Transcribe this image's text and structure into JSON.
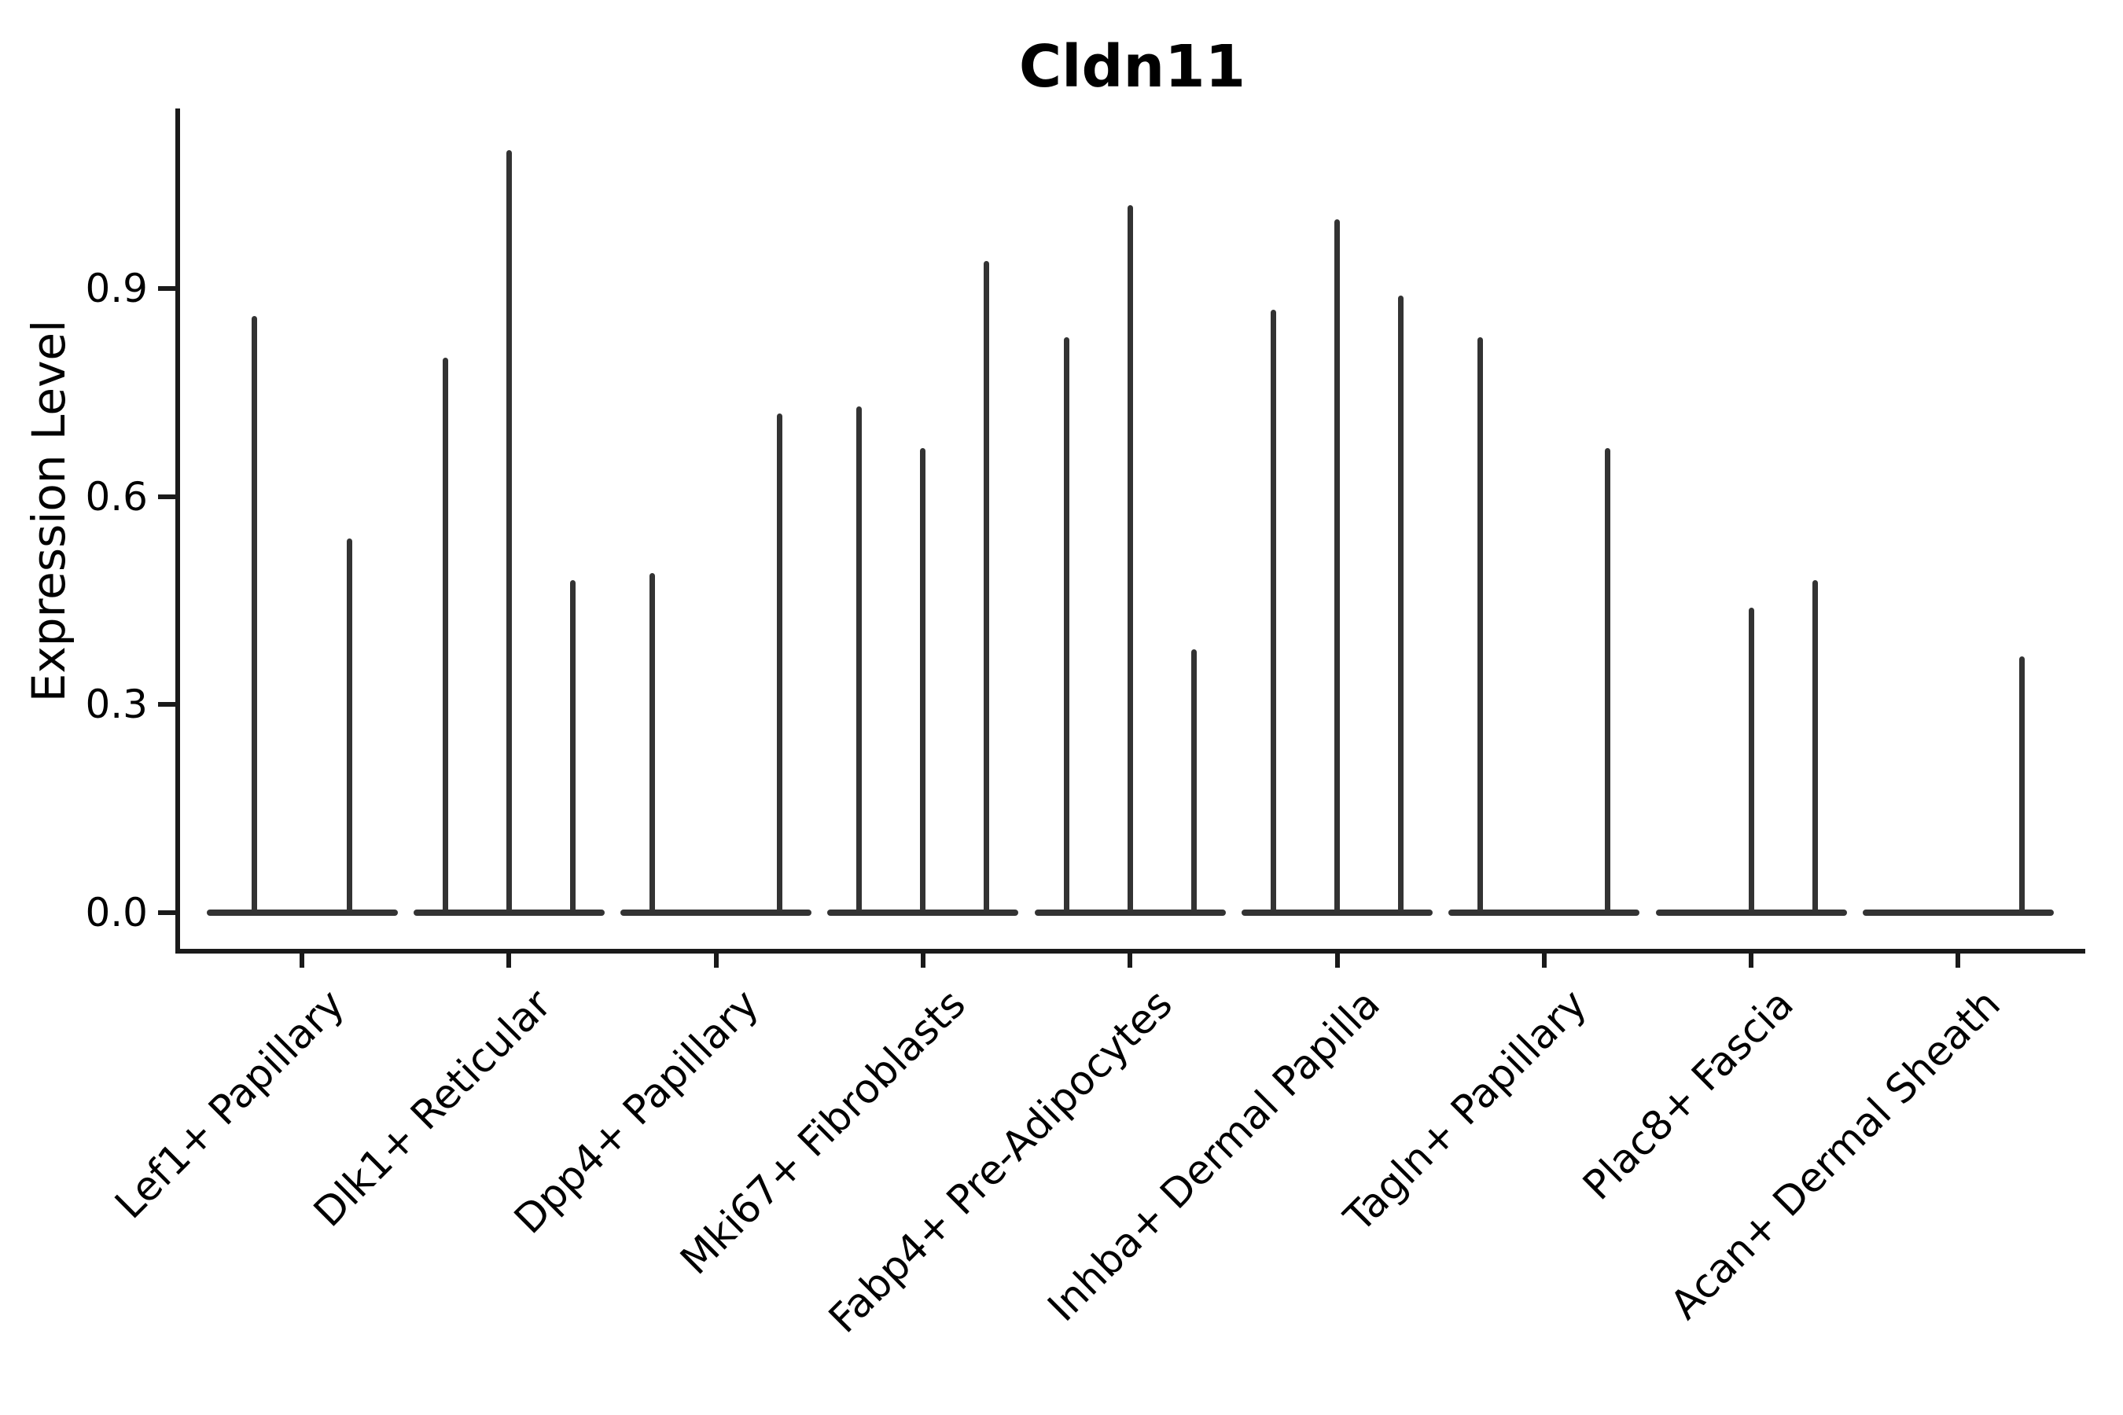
{
  "figure": {
    "title": "Cldn11",
    "ylabel": "Expression Level",
    "background_color": "#ffffff",
    "ink_color": "#1a1a1a",
    "violin_color": "#333333"
  },
  "chart_data": {
    "type": "violin",
    "title": "Cldn11",
    "xlabel": "",
    "ylabel": "Expression Level",
    "ytick_labels": [
      "0.0",
      "0.3",
      "0.6",
      "0.9"
    ],
    "ytick_values": [
      0.0,
      0.3,
      0.6,
      0.9
    ],
    "ylim": [
      -0.05,
      1.16
    ],
    "grid": false,
    "legend_position": "none",
    "categories": [
      "Lef1+ Papillary",
      "Dlk1+ Reticular",
      "Dpp4+ Papillary",
      "Mki67+ Fibroblasts",
      "Fabp4+ Pre-Adipocytes",
      "Inhba+ Dermal Papilla",
      "Tagln+ Papillary",
      "Plac8+ Fascia",
      "Acan+ Dermal Sheath"
    ],
    "groups": [
      {
        "category": "Lef1+ Papillary",
        "violin_max_values": [
          0.86,
          0.54
        ]
      },
      {
        "category": "Dlk1+ Reticular",
        "violin_max_values": [
          0.8,
          1.1,
          0.48
        ]
      },
      {
        "category": "Dpp4+ Papillary",
        "violin_max_values": [
          0.49,
          0.0,
          0.72
        ]
      },
      {
        "category": "Mki67+ Fibroblasts",
        "violin_max_values": [
          0.73,
          0.67,
          0.94
        ]
      },
      {
        "category": "Fabp4+ Pre-Adipocytes",
        "violin_max_values": [
          0.83,
          1.02,
          0.38
        ]
      },
      {
        "category": "Inhba+ Dermal Papilla",
        "violin_max_values": [
          0.87,
          1.0,
          0.89
        ]
      },
      {
        "category": "Tagln+ Papillary",
        "violin_max_values": [
          0.83,
          0.0,
          0.67
        ]
      },
      {
        "category": "Plac8+ Fascia",
        "violin_max_values": [
          0.0,
          0.44,
          0.48
        ]
      },
      {
        "category": "Acan+ Dermal Sheath",
        "violin_max_values": [
          0.0,
          0.0,
          0.37
        ]
      }
    ]
  }
}
